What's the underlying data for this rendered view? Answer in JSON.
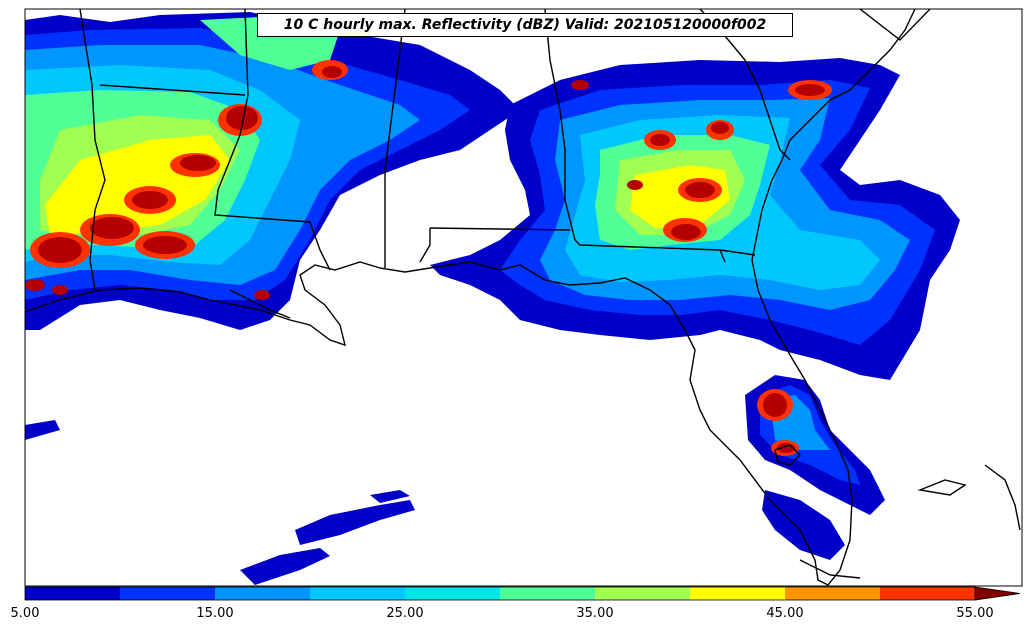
{
  "title": "10 C hourly max. Reflectivity (dBZ) Valid: 202105120000f002",
  "colorbar": {
    "levels": [
      5,
      10,
      15,
      20,
      25,
      30,
      35,
      40,
      45,
      50,
      55
    ],
    "colors": [
      "#0000c8",
      "#0032ff",
      "#0096ff",
      "#00c8ff",
      "#00e6e6",
      "#50ff96",
      "#a0ff50",
      "#ffff00",
      "#ff9600",
      "#ff3200",
      "#b40000"
    ],
    "extend_color": "#800000",
    "tick_labels": [
      "5.00",
      "15.00",
      "25.00",
      "35.00",
      "45.00",
      "55.00"
    ]
  },
  "region": "Southeastern United States (Gulf Coast, Florida, Georgia)"
}
